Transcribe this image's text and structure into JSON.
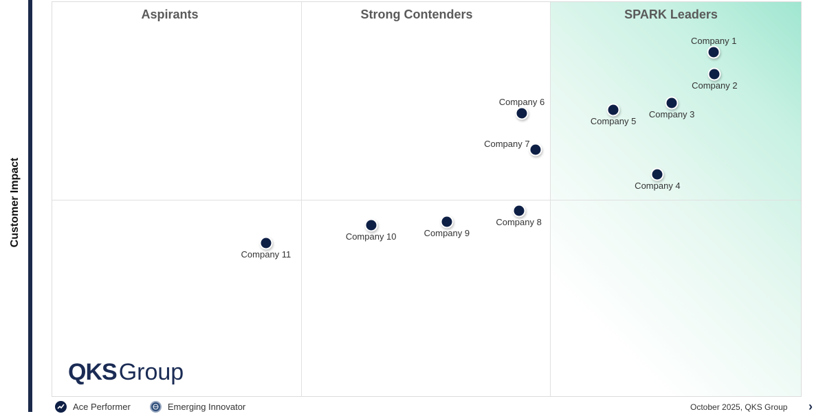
{
  "chart_data": {
    "type": "scatter",
    "ylabel": "Customer Impact",
    "xlabel": "",
    "quadrants": [
      "Aspirants",
      "Strong Contenders",
      "SPARK Leaders"
    ],
    "points": [
      {
        "label": "Company 1",
        "x": 8.82,
        "y": 8.73
      },
      {
        "label": "Company 2",
        "x": 8.83,
        "y": 8.18
      },
      {
        "label": "Company 3",
        "x": 8.26,
        "y": 7.45
      },
      {
        "label": "Company 4",
        "x": 8.07,
        "y": 5.64
      },
      {
        "label": "Company 5",
        "x": 7.48,
        "y": 7.27
      },
      {
        "label": "Company 6",
        "x": 6.26,
        "y": 7.18
      },
      {
        "label": "Company 7",
        "x": 6.44,
        "y": 6.27
      },
      {
        "label": "Company 8",
        "x": 6.22,
        "y": 4.73
      },
      {
        "label": "Company 9",
        "x": 5.26,
        "y": 4.45
      },
      {
        "label": "Company 10",
        "x": 4.25,
        "y": 4.36
      },
      {
        "label": "Company 11",
        "x": 2.85,
        "y": 3.91
      }
    ],
    "xlim": [
      0,
      10
    ],
    "ylim": [
      0,
      10
    ],
    "quadrant_split": {
      "x": [
        3.3,
        6.63
      ],
      "y": 5.0
    },
    "grid": false
  },
  "branding": {
    "logo_bold": "QKS",
    "logo_light": "Group"
  },
  "legend": [
    {
      "label": "Ace Performer",
      "icon": "trend-up-icon"
    },
    {
      "label": "Emerging Innovator",
      "icon": "globe-icon"
    }
  ],
  "footer": {
    "date_source": "October 2025, QKS Group"
  }
}
